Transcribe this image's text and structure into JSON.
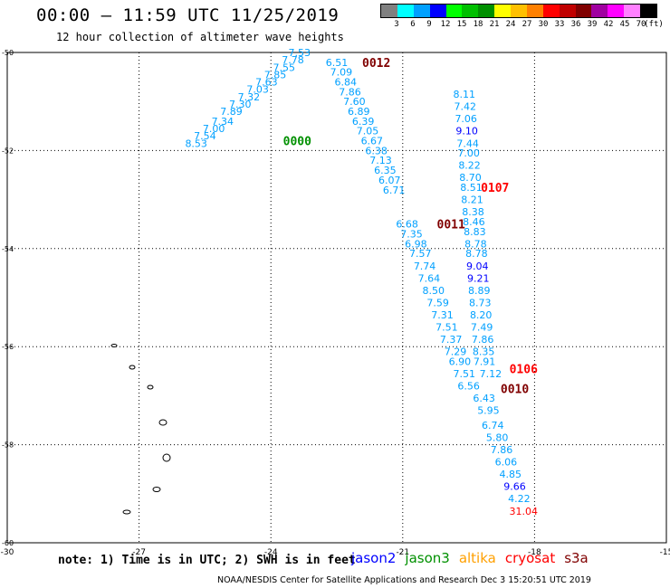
{
  "header": {
    "title": "00:00 – 11:59 UTC 11/25/2019",
    "subtitle": "12 hour collection of altimeter wave heights"
  },
  "legend": {
    "unit": "(ft)",
    "bins": [
      {
        "label": "3",
        "color": "#808080"
      },
      {
        "label": "6",
        "color": "#00ffff"
      },
      {
        "label": "9",
        "color": "#00a0ff"
      },
      {
        "label": "12",
        "color": "#0000ff"
      },
      {
        "label": "15",
        "color": "#00ff00"
      },
      {
        "label": "18",
        "color": "#00c000"
      },
      {
        "label": "21",
        "color": "#009000"
      },
      {
        "label": "24",
        "color": "#ffff00"
      },
      {
        "label": "27",
        "color": "#ffc000"
      },
      {
        "label": "30",
        "color": "#ff8000"
      },
      {
        "label": "33",
        "color": "#ff0000"
      },
      {
        "label": "36",
        "color": "#c00000"
      },
      {
        "label": "39",
        "color": "#800000"
      },
      {
        "label": "42",
        "color": "#a000a0"
      },
      {
        "label": "45",
        "color": "#ff00ff"
      },
      {
        "label": "70",
        "color": "#ff80ff"
      },
      {
        "label": "",
        "color": "#000000"
      }
    ]
  },
  "axes": {
    "lon_ticks": [
      "-30",
      "-27",
      "-24",
      "-21",
      "-18",
      "-15"
    ],
    "lat_ticks": [
      "-50",
      "-52",
      "-54",
      "-56",
      "-58",
      "-60"
    ]
  },
  "chart_data": {
    "type": "scatter",
    "lon_range": [
      -30,
      -15
    ],
    "lat_range": [
      -60,
      -50
    ],
    "tracks": [
      {
        "time_label": "0000",
        "label_color": "#009000",
        "label_lon": -23.4,
        "label_lat": -51.8,
        "points": [
          {
            "v": "7.53",
            "lon": -23.35,
            "lat": -50.0,
            "c": "#00a0ff"
          },
          {
            "v": "7.78",
            "lon": -23.5,
            "lat": -50.15,
            "c": "#00a0ff"
          },
          {
            "v": "7.55",
            "lon": -23.7,
            "lat": -50.3,
            "c": "#00a0ff"
          },
          {
            "v": "7.85",
            "lon": -23.9,
            "lat": -50.45,
            "c": "#00a0ff"
          },
          {
            "v": "7.63",
            "lon": -24.1,
            "lat": -50.6,
            "c": "#00a0ff"
          },
          {
            "v": "7.03",
            "lon": -24.3,
            "lat": -50.75,
            "c": "#00a0ff"
          },
          {
            "v": "7.32",
            "lon": -24.5,
            "lat": -50.9,
            "c": "#00a0ff"
          },
          {
            "v": "7.30",
            "lon": -24.7,
            "lat": -51.05,
            "c": "#00a0ff"
          },
          {
            "v": "7.89",
            "lon": -24.9,
            "lat": -51.2,
            "c": "#00a0ff"
          },
          {
            "v": "7.34",
            "lon": -25.1,
            "lat": -51.4,
            "c": "#00a0ff"
          },
          {
            "v": "7.00",
            "lon": -25.3,
            "lat": -51.55,
            "c": "#00a0ff"
          },
          {
            "v": "7.54",
            "lon": -25.5,
            "lat": -51.7,
            "c": "#00a0ff"
          },
          {
            "v": "8.53",
            "lon": -25.7,
            "lat": -51.85,
            "c": "#00a0ff"
          }
        ]
      },
      {
        "time_label": "0012",
        "label_color": "#800000",
        "label_lon": -21.6,
        "label_lat": -50.2,
        "points": [
          {
            "v": "6.51",
            "lon": -22.5,
            "lat": -50.2,
            "c": "#00a0ff"
          },
          {
            "v": "7.09",
            "lon": -22.4,
            "lat": -50.4,
            "c": "#00a0ff"
          },
          {
            "v": "6.84",
            "lon": -22.3,
            "lat": -50.6,
            "c": "#00a0ff"
          },
          {
            "v": "7.86",
            "lon": -22.2,
            "lat": -50.8,
            "c": "#00a0ff"
          },
          {
            "v": "7.60",
            "lon": -22.1,
            "lat": -51.0,
            "c": "#00a0ff"
          },
          {
            "v": "6.89",
            "lon": -22.0,
            "lat": -51.2,
            "c": "#00a0ff"
          },
          {
            "v": "6.39",
            "lon": -21.9,
            "lat": -51.4,
            "c": "#00a0ff"
          },
          {
            "v": "7.05",
            "lon": -21.8,
            "lat": -51.6,
            "c": "#00a0ff"
          },
          {
            "v": "6.67",
            "lon": -21.7,
            "lat": -51.8,
            "c": "#00a0ff"
          },
          {
            "v": "6.38",
            "lon": -21.6,
            "lat": -52.0,
            "c": "#00a0ff"
          },
          {
            "v": "7.13",
            "lon": -21.5,
            "lat": -52.2,
            "c": "#00a0ff"
          },
          {
            "v": "6.35",
            "lon": -21.4,
            "lat": -52.4,
            "c": "#00a0ff"
          },
          {
            "v": "6.07",
            "lon": -21.3,
            "lat": -52.6,
            "c": "#00a0ff"
          },
          {
            "v": "6.71",
            "lon": -21.2,
            "lat": -52.8,
            "c": "#00a0ff"
          }
        ]
      },
      {
        "time_label": "0011",
        "label_color": "#800000",
        "label_lon": -19.9,
        "label_lat": -53.5,
        "points": [
          {
            "v": "6.68",
            "lon": -20.9,
            "lat": -53.5,
            "c": "#00a0ff"
          },
          {
            "v": "7.35",
            "lon": -20.8,
            "lat": -53.7,
            "c": "#00a0ff"
          },
          {
            "v": "6.98",
            "lon": -20.7,
            "lat": -53.9,
            "c": "#00a0ff"
          },
          {
            "v": "7.57",
            "lon": -20.6,
            "lat": -54.1,
            "c": "#00a0ff"
          },
          {
            "v": "7.74",
            "lon": -20.5,
            "lat": -54.35,
            "c": "#00a0ff"
          },
          {
            "v": "7.64",
            "lon": -20.4,
            "lat": -54.6,
            "c": "#00a0ff"
          },
          {
            "v": "8.50",
            "lon": -20.3,
            "lat": -54.85,
            "c": "#00a0ff"
          },
          {
            "v": "7.59",
            "lon": -20.2,
            "lat": -55.1,
            "c": "#00a0ff"
          },
          {
            "v": "7.31",
            "lon": -20.1,
            "lat": -55.35,
            "c": "#00a0ff"
          },
          {
            "v": "7.51",
            "lon": -20.0,
            "lat": -55.6,
            "c": "#00a0ff"
          },
          {
            "v": "7.37",
            "lon": -19.9,
            "lat": -55.85,
            "c": "#00a0ff"
          },
          {
            "v": "7.29",
            "lon": -19.8,
            "lat": -56.1,
            "c": "#00a0ff"
          },
          {
            "v": "6.90",
            "lon": -19.7,
            "lat": -56.3,
            "c": "#00a0ff"
          },
          {
            "v": "7.51",
            "lon": -19.6,
            "lat": -56.55,
            "c": "#00a0ff"
          },
          {
            "v": "6.56",
            "lon": -19.5,
            "lat": -56.8,
            "c": "#00a0ff"
          }
        ]
      },
      {
        "time_label": "0107",
        "label_color": "#ff0000",
        "label_lon": -18.9,
        "label_lat": -52.75,
        "points": [
          {
            "v": "8.11",
            "lon": -19.6,
            "lat": -50.85,
            "c": "#00a0ff"
          },
          {
            "v": "7.42",
            "lon": -19.58,
            "lat": -51.1,
            "c": "#00a0ff"
          },
          {
            "v": "7.06",
            "lon": -19.56,
            "lat": -51.35,
            "c": "#00a0ff"
          },
          {
            "v": "9.10",
            "lon": -19.54,
            "lat": -51.6,
            "c": "#0000ff"
          },
          {
            "v": "7.44",
            "lon": -19.52,
            "lat": -51.85,
            "c": "#00a0ff"
          },
          {
            "v": "7.00",
            "lon": -19.5,
            "lat": -52.05,
            "c": "#00a0ff"
          },
          {
            "v": "8.22",
            "lon": -19.48,
            "lat": -52.3,
            "c": "#00a0ff"
          },
          {
            "v": "8.70",
            "lon": -19.46,
            "lat": -52.55,
            "c": "#00a0ff"
          },
          {
            "v": "8.51",
            "lon": -19.44,
            "lat": -52.75,
            "c": "#00a0ff"
          },
          {
            "v": "8.21",
            "lon": -19.42,
            "lat": -53.0,
            "c": "#00a0ff"
          },
          {
            "v": "8.38",
            "lon": -19.4,
            "lat": -53.25,
            "c": "#00a0ff"
          },
          {
            "v": "8.46",
            "lon": -19.38,
            "lat": -53.45,
            "c": "#00a0ff"
          },
          {
            "v": "8.83",
            "lon": -19.36,
            "lat": -53.65,
            "c": "#00a0ff"
          },
          {
            "v": "8.78",
            "lon": -19.34,
            "lat": -53.9,
            "c": "#00a0ff"
          },
          {
            "v": "8.78",
            "lon": -19.32,
            "lat": -54.1,
            "c": "#00a0ff"
          },
          {
            "v": "9.04",
            "lon": -19.3,
            "lat": -54.35,
            "c": "#0000ff"
          },
          {
            "v": "9.21",
            "lon": -19.28,
            "lat": -54.6,
            "c": "#0000ff"
          },
          {
            "v": "8.89",
            "lon": -19.26,
            "lat": -54.85,
            "c": "#00a0ff"
          },
          {
            "v": "8.73",
            "lon": -19.24,
            "lat": -55.1,
            "c": "#00a0ff"
          },
          {
            "v": "8.20",
            "lon": -19.22,
            "lat": -55.35,
            "c": "#00a0ff"
          },
          {
            "v": "7.49",
            "lon": -19.2,
            "lat": -55.6,
            "c": "#00a0ff"
          },
          {
            "v": "7.86",
            "lon": -19.18,
            "lat": -55.85,
            "c": "#00a0ff"
          },
          {
            "v": "8.35",
            "lon": -19.16,
            "lat": -56.1,
            "c": "#00a0ff"
          },
          {
            "v": "7.91",
            "lon": -19.14,
            "lat": -56.3,
            "c": "#00a0ff"
          },
          {
            "v": "7.12",
            "lon": -19.0,
            "lat": -56.55,
            "c": "#00a0ff"
          }
        ]
      },
      {
        "time_label": "0106",
        "label_color": "#ff0000",
        "label_lon": -18.25,
        "label_lat": -56.45,
        "points": []
      },
      {
        "time_label": "0010",
        "label_color": "#800000",
        "label_lon": -18.45,
        "label_lat": -56.85,
        "points": [
          {
            "v": "6.43",
            "lon": -19.15,
            "lat": -57.05,
            "c": "#00a0ff"
          },
          {
            "v": "5.95",
            "lon": -19.05,
            "lat": -57.3,
            "c": "#00a0ff"
          },
          {
            "v": "6.74",
            "lon": -18.95,
            "lat": -57.6,
            "c": "#00a0ff"
          },
          {
            "v": "5.80",
            "lon": -18.85,
            "lat": -57.85,
            "c": "#00a0ff"
          },
          {
            "v": "7.86",
            "lon": -18.75,
            "lat": -58.1,
            "c": "#00a0ff"
          },
          {
            "v": "6.06",
            "lon": -18.65,
            "lat": -58.35,
            "c": "#00a0ff"
          },
          {
            "v": "4.85",
            "lon": -18.55,
            "lat": -58.6,
            "c": "#00a0ff"
          },
          {
            "v": "9.66",
            "lon": -18.45,
            "lat": -58.85,
            "c": "#0000ff"
          },
          {
            "v": "4.22",
            "lon": -18.35,
            "lat": -59.1,
            "c": "#00a0ff"
          },
          {
            "v": "31.04",
            "lon": -18.25,
            "lat": -59.35,
            "c": "#ff0000"
          }
        ]
      }
    ]
  },
  "satellites": [
    {
      "name": "jason2",
      "color": "#0000ff"
    },
    {
      "name": "jason3",
      "color": "#009000"
    },
    {
      "name": "altika",
      "color": "#ffa000"
    },
    {
      "name": "cryosat",
      "color": "#ff0000"
    },
    {
      "name": "s3a",
      "color": "#800000"
    }
  ],
  "note": "note: 1) Time is in UTC; 2) SWH is in feet",
  "footer": "NOAA/NESDIS Center for Satellite Applications and Research    Dec  3 15:20:51 UTC 2019"
}
